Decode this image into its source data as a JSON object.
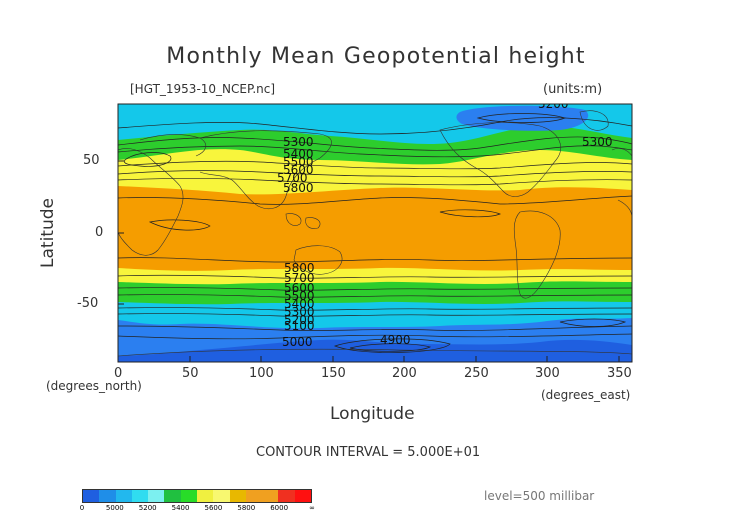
{
  "title": "Monthly Mean Geopotential height",
  "file_label": "[HGT_1953-10_NCEP.nc]",
  "units_label": "(units:m)",
  "x_axis": {
    "label": "Longitude",
    "unit_label": "(degrees_east)",
    "ticks": [
      "0",
      "50",
      "100",
      "150",
      "200",
      "250",
      "300",
      "350"
    ]
  },
  "y_axis": {
    "label": "Latitude",
    "unit_label": "(degrees_north)",
    "ticks": [
      "50",
      "0",
      "-50"
    ]
  },
  "contour_interval": "CONTOUR INTERVAL = 5.000E+01",
  "level": "level=500 millibar",
  "contour_labels": [
    "5200",
    "5300",
    "5300",
    "5400",
    "5500",
    "5600",
    "5700",
    "5800",
    "5800",
    "5700",
    "5600",
    "5500",
    "5400",
    "5300",
    "5200",
    "5100",
    "5000",
    "4900"
  ],
  "colorbar": {
    "labels": [
      "0",
      "5000",
      "5200",
      "5400",
      "5600",
      "5800",
      "6000",
      "∞"
    ],
    "colors": [
      "#1f5fe0",
      "#1f8ee8",
      "#22b8ee",
      "#30dcf0",
      "#7cf0f0",
      "#20c040",
      "#28dc28",
      "#f0f040",
      "#f8f870",
      "#e8b800",
      "#f0a020",
      "#f0a020",
      "#f03020",
      "#ff1010"
    ]
  },
  "field": {
    "bands": [
      {
        "color": "#f59d00",
        "range": "above 5800"
      },
      {
        "color": "#f8f53c",
        "range": "5600-5800"
      },
      {
        "color": "#2dcd2d",
        "range": "5400-5600"
      },
      {
        "color": "#14c8ea",
        "range": "5200-5400"
      },
      {
        "color": "#2b7ff0",
        "range": "5000-5200"
      },
      {
        "color": "#1f5fe0",
        "range": "below 5000"
      }
    ]
  }
}
